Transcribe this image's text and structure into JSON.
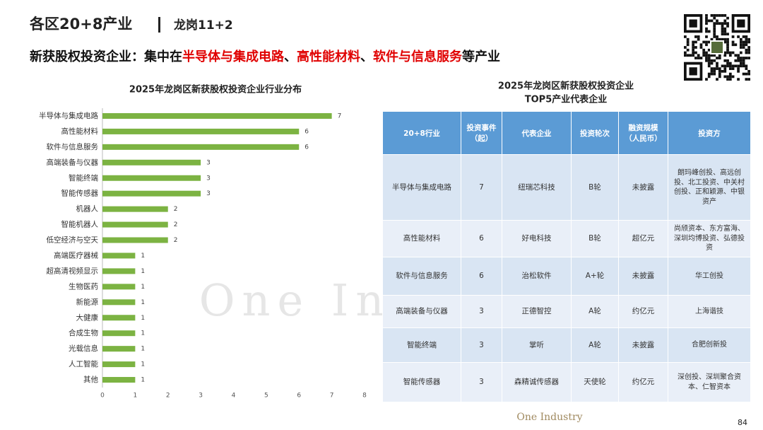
{
  "header": {
    "title": "各区20+8产业",
    "subtitle": "龙岗11+2"
  },
  "headline": [
    {
      "text": "新获股权投资企业：集中在",
      "emphasis": false
    },
    {
      "text": "半导体与集成电路",
      "emphasis": true
    },
    {
      "text": "、",
      "emphasis": false
    },
    {
      "text": "高性能材料",
      "emphasis": true
    },
    {
      "text": "、",
      "emphasis": false
    },
    {
      "text": "软件与信息服务",
      "emphasis": true
    },
    {
      "text": "等产业",
      "emphasis": false
    }
  ],
  "chart_data": {
    "type": "bar",
    "orientation": "horizontal",
    "title": "2025年龙岗区新获股权投资企业行业分布",
    "categories": [
      "半导体与集成电路",
      "高性能材料",
      "软件与信息服务",
      "高端装备与仪器",
      "智能终端",
      "智能传感器",
      "机器人",
      "智能机器人",
      "低空经济与空天",
      "高端医疗器械",
      "超高清视频显示",
      "生物医药",
      "新能源",
      "大健康",
      "合成生物",
      "光载信息",
      "人工智能",
      "其他"
    ],
    "values": [
      7,
      6,
      6,
      3,
      3,
      3,
      2,
      2,
      2,
      1,
      1,
      1,
      1,
      1,
      1,
      1,
      1,
      1
    ],
    "color": "#7cb342",
    "xlim": [
      0,
      8
    ],
    "xticks": [
      0,
      1,
      2,
      3,
      4,
      5,
      6,
      7,
      8
    ],
    "grid": false
  },
  "table": {
    "title": [
      "2025年龙岗区新获股权投资企业",
      "TOP5产业代表企业"
    ],
    "headers": [
      "20+8行业",
      "投资事件（起）",
      "代表企业",
      "投资轮次",
      "融资规模（人民币）",
      "投资方"
    ],
    "rows": [
      [
        "半导体与集成电路",
        "7",
        "纽瑞芯科技",
        "B轮",
        "未披露",
        "朗玛峰创投、高远创投、北工投资、中关村创投、正和颖源、中银资产"
      ],
      [
        "高性能材料",
        "6",
        "好电科技",
        "B轮",
        "超亿元",
        "尚颀资本、东方富海、深圳均博投资、弘德投资"
      ],
      [
        "软件与信息服务",
        "6",
        "治松软件",
        "A+轮",
        "未披露",
        "华工创投"
      ],
      [
        "高端装备与仪器",
        "3",
        "正德智控",
        "A轮",
        "约亿元",
        "上海谐技"
      ],
      [
        "智能终端",
        "3",
        "掌听",
        "A轮",
        "未披露",
        "合肥创新投"
      ],
      [
        "智能传感器",
        "3",
        "森精诚传感器",
        "天使轮",
        "约亿元",
        "深创投、深圳聚合资本、仁智资本"
      ]
    ]
  },
  "watermark": "One Industry",
  "footer": {
    "logo": "One Industry",
    "page": "84"
  }
}
